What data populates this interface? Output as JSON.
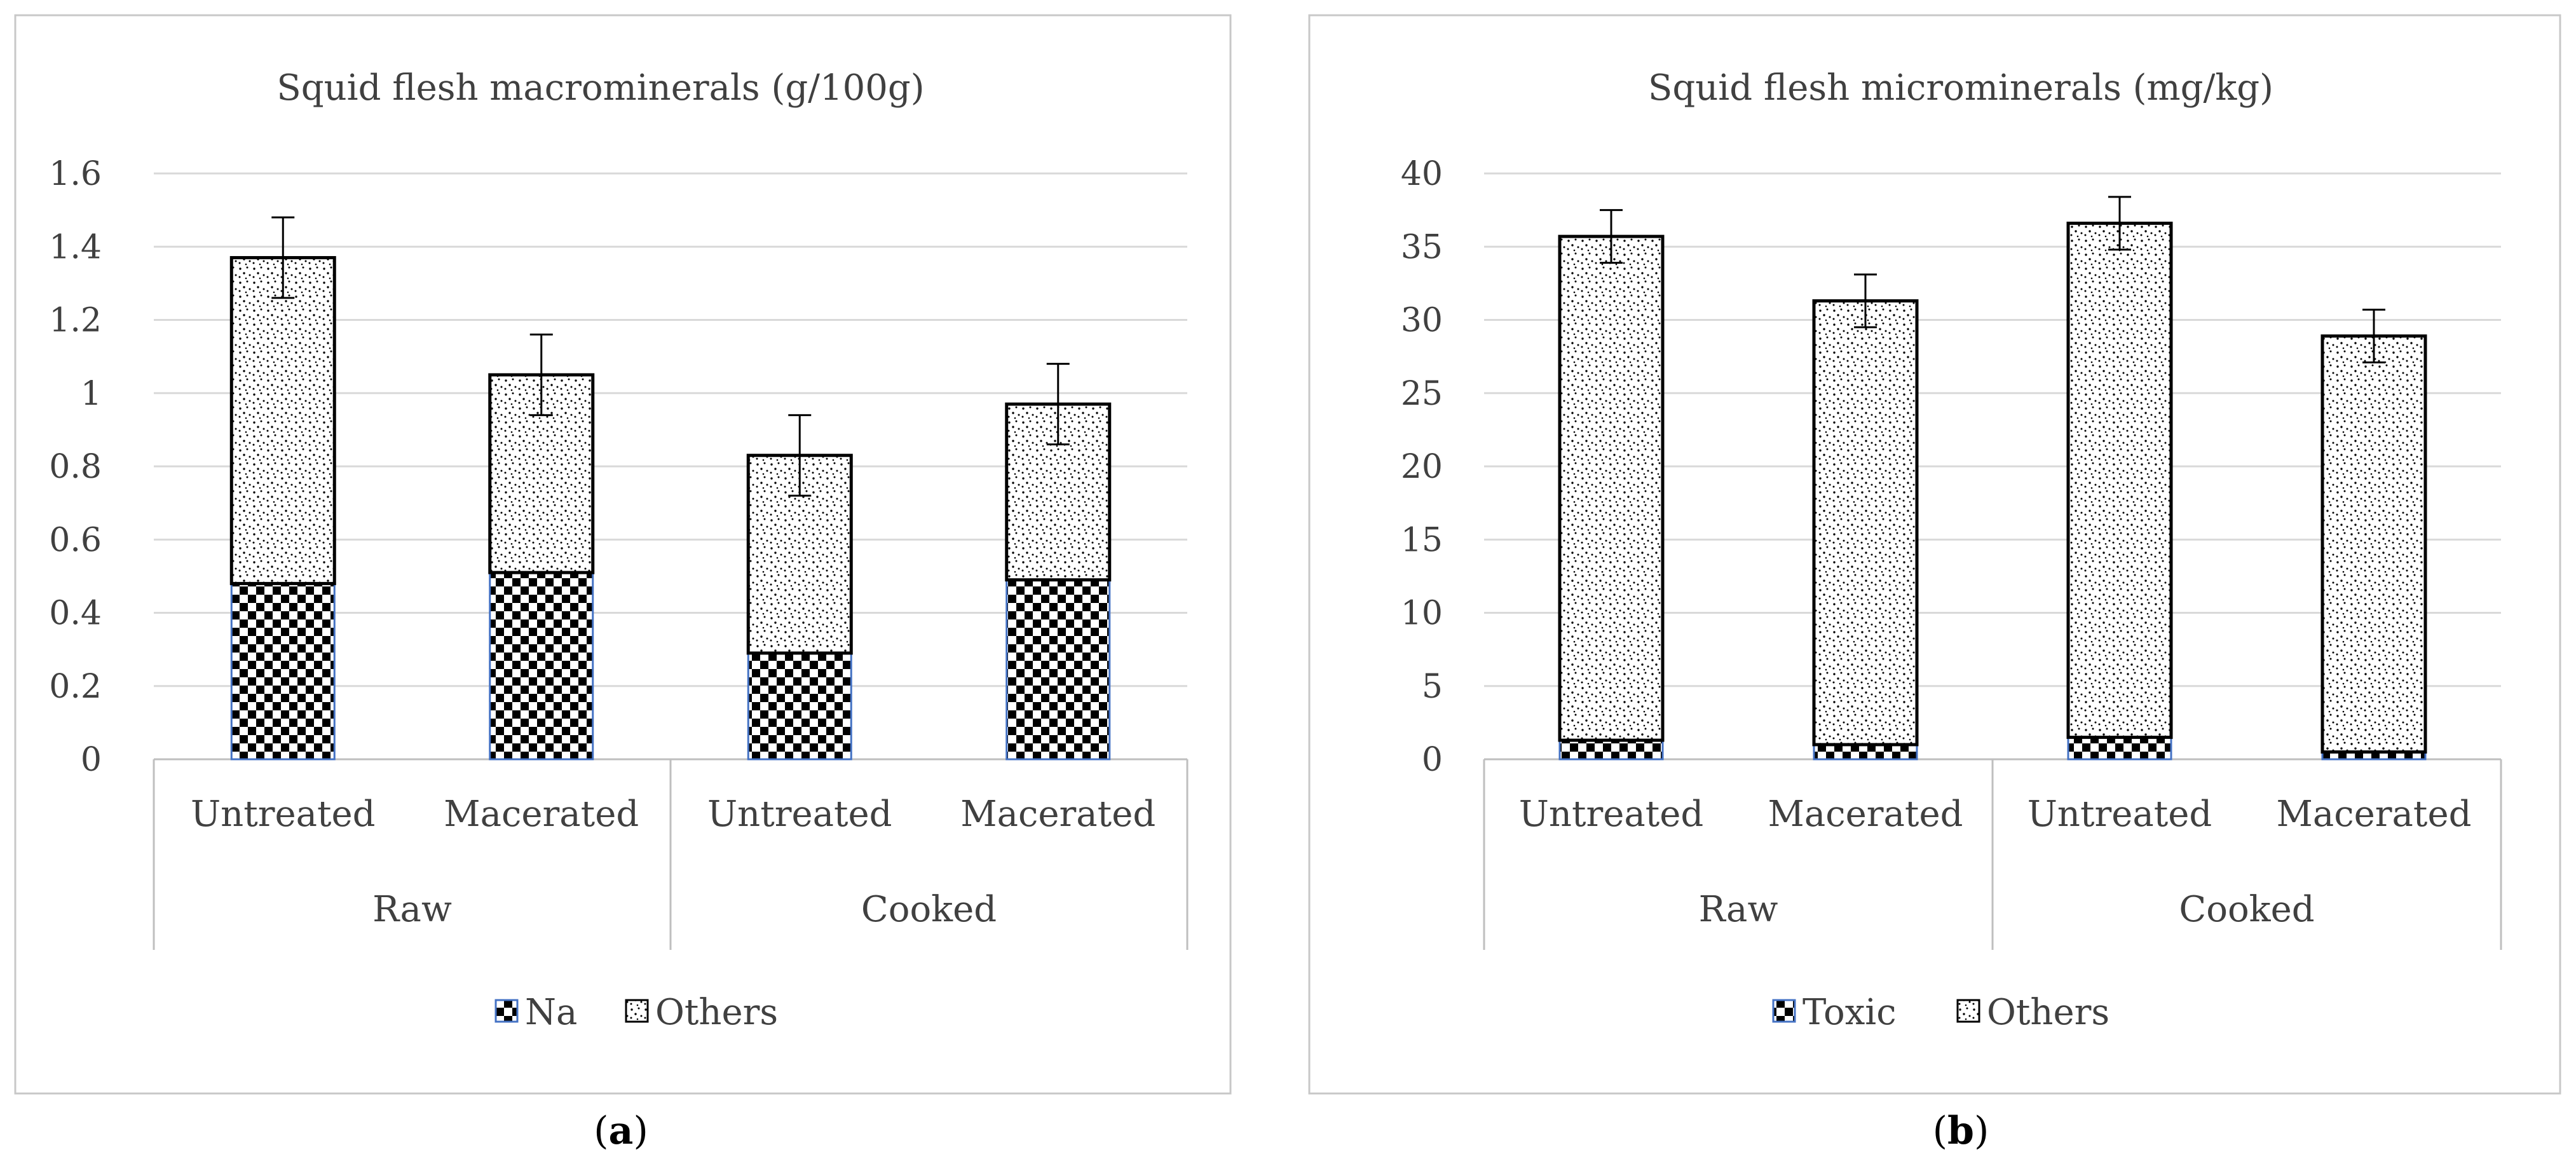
{
  "patterns": {
    "checker": "checker-icon",
    "dots": "stipple-icon"
  },
  "colors": {
    "axis": "#bfbfbf",
    "grid": "#d9d9d9",
    "bar_outline": "#000000",
    "base_outline": "#4472c4",
    "text": "#404040"
  },
  "chart_data": [
    {
      "id": "a",
      "type": "bar",
      "stacked": true,
      "title": "Squid flesh macrominerals (g/100g)",
      "ylim": [
        0,
        1.6
      ],
      "yticks": [
        "0",
        "0.2",
        "0.4",
        "0.6",
        "0.8",
        "1",
        "1.2",
        "1.4",
        "1.6"
      ],
      "ytick_values": [
        0,
        0.2,
        0.4,
        0.6,
        0.8,
        1.0,
        1.2,
        1.4,
        1.6
      ],
      "categories": [
        "Untreated",
        "Macerated",
        "Untreated",
        "Macerated"
      ],
      "groups": [
        {
          "label": "Raw",
          "span": 2
        },
        {
          "label": "Cooked",
          "span": 2
        }
      ],
      "series": [
        {
          "name": "Na",
          "pattern": "checker",
          "values": [
            0.48,
            0.51,
            0.29,
            0.49
          ]
        },
        {
          "name": "Others",
          "pattern": "dots",
          "values": [
            0.89,
            0.54,
            0.54,
            0.48
          ]
        }
      ],
      "error_bars": [
        0.11,
        0.11,
        0.11,
        0.11
      ],
      "legend_position": "bottom",
      "caption": "a"
    },
    {
      "id": "b",
      "type": "bar",
      "stacked": true,
      "title": "Squid flesh microminerals (mg/kg)",
      "ylim": [
        0,
        40
      ],
      "yticks": [
        "0",
        "5",
        "10",
        "15",
        "20",
        "25",
        "30",
        "35",
        "40"
      ],
      "ytick_values": [
        0,
        5,
        10,
        15,
        20,
        25,
        30,
        35,
        40
      ],
      "categories": [
        "Untreated",
        "Macerated",
        "Untreated",
        "Macerated"
      ],
      "groups": [
        {
          "label": "Raw",
          "span": 2
        },
        {
          "label": "Cooked",
          "span": 2
        }
      ],
      "series": [
        {
          "name": "Toxic",
          "pattern": "checker",
          "values": [
            1.3,
            1.0,
            1.5,
            0.5
          ]
        },
        {
          "name": "Others",
          "pattern": "dots",
          "values": [
            34.4,
            30.3,
            35.1,
            28.4
          ]
        }
      ],
      "error_bars": [
        1.8,
        1.8,
        1.8,
        1.8
      ],
      "legend_position": "bottom",
      "caption": "b"
    }
  ]
}
